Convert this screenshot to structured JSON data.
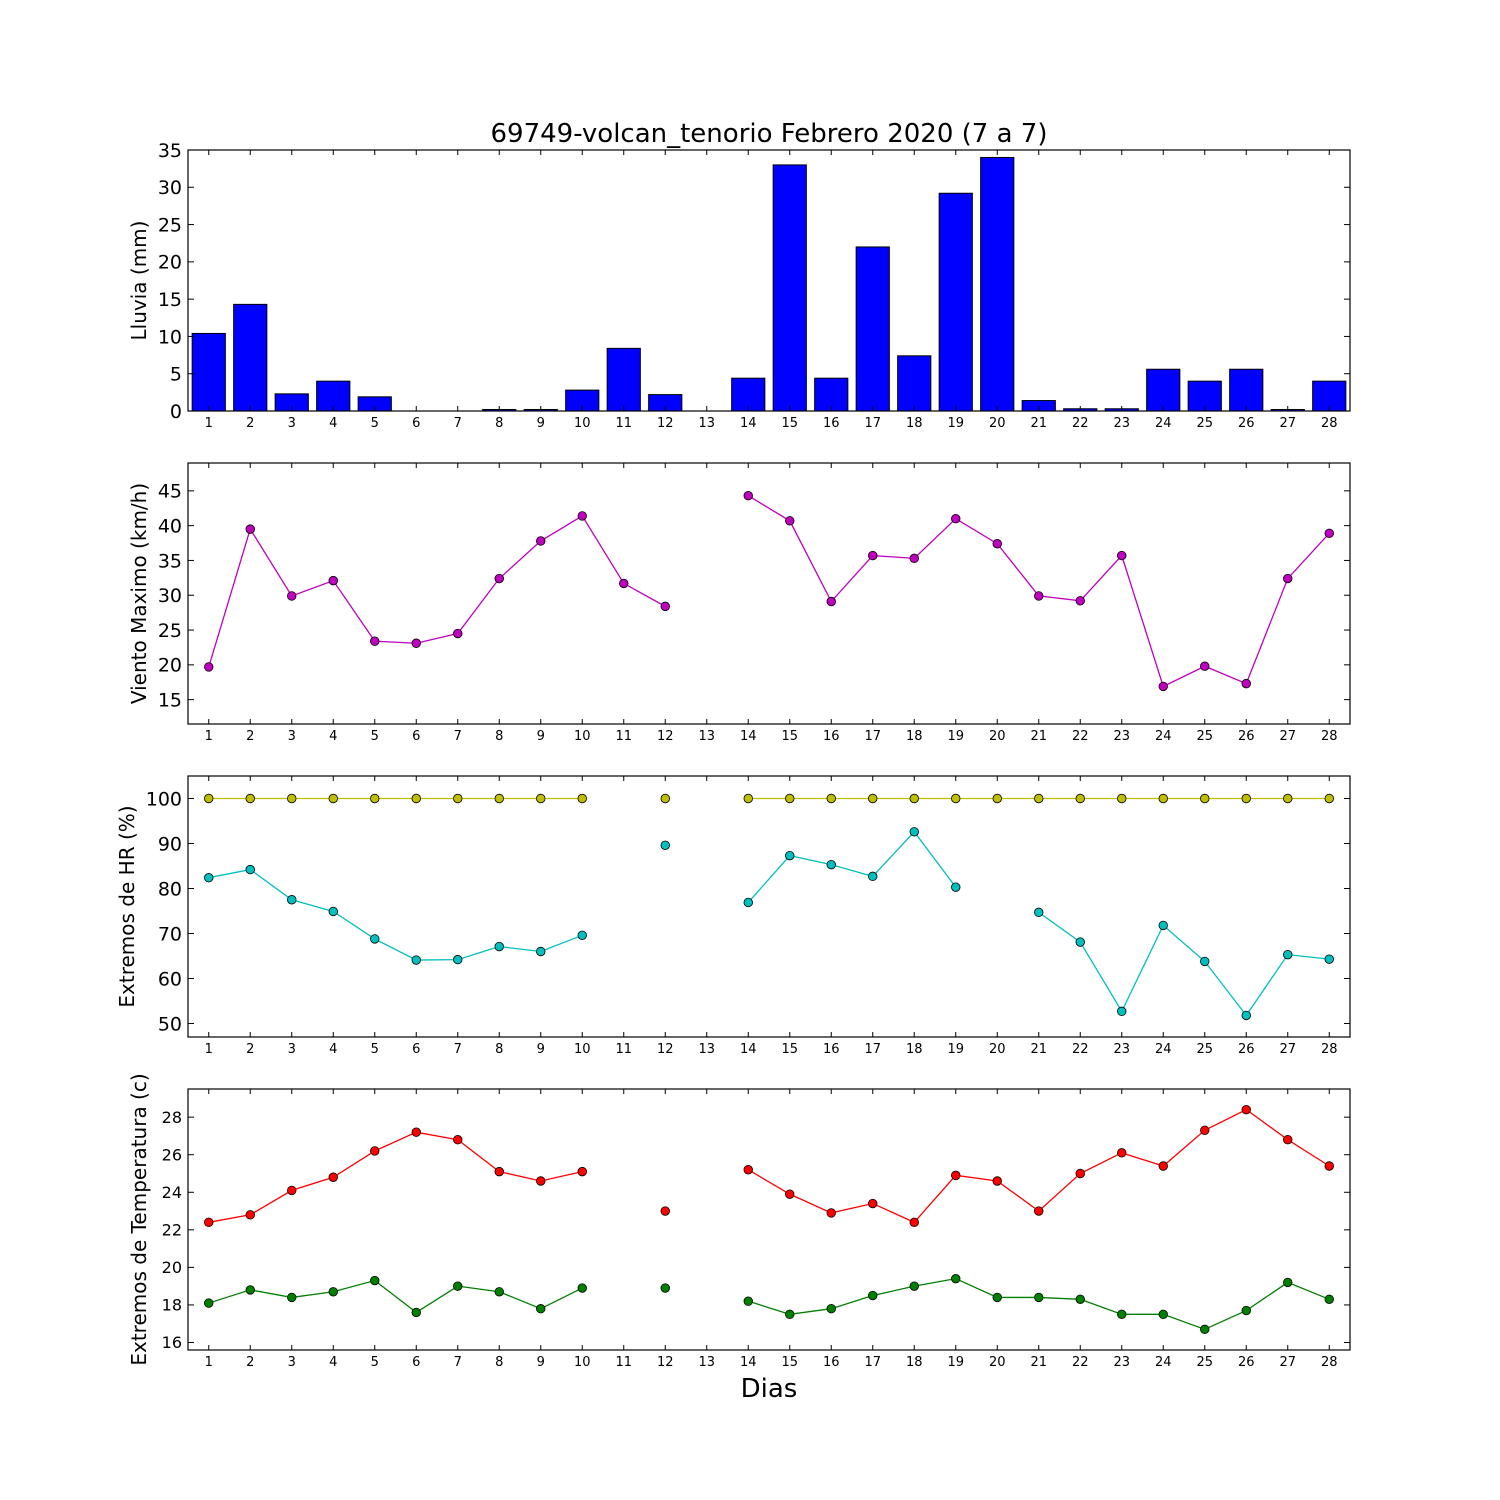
{
  "figure": {
    "title": "69749-volcan_tenorio Febrero 2020  (7 a 7)",
    "xlabel": "Dias"
  },
  "chart_data": [
    {
      "type": "bar",
      "ylabel": "Lluvia (mm)",
      "ylim": [
        0,
        35
      ],
      "yticks": [
        0,
        5,
        10,
        15,
        20,
        25,
        30,
        35
      ],
      "x": [
        1,
        2,
        3,
        4,
        5,
        6,
        7,
        8,
        9,
        10,
        11,
        12,
        13,
        14,
        15,
        16,
        17,
        18,
        19,
        20,
        21,
        22,
        23,
        24,
        25,
        26,
        27,
        28
      ],
      "xticks": [
        1,
        2,
        3,
        4,
        5,
        6,
        7,
        8,
        9,
        10,
        11,
        12,
        13,
        14,
        15,
        16,
        17,
        18,
        19,
        20,
        21,
        22,
        23,
        24,
        25,
        26,
        27,
        28
      ],
      "series": [
        {
          "color": "#0000ff",
          "values": [
            10.4,
            14.3,
            2.3,
            4.0,
            1.9,
            0,
            0,
            0.2,
            0.2,
            2.8,
            8.4,
            2.2,
            null,
            4.4,
            33.0,
            4.4,
            22.0,
            7.4,
            29.2,
            34.0,
            1.4,
            0.3,
            0.3,
            5.6,
            4.0,
            5.6,
            0.2,
            4.0
          ]
        }
      ]
    },
    {
      "type": "line",
      "ylabel": "Viento Maximo (km/h)",
      "ylim": [
        11.5,
        49
      ],
      "yticks": [
        15,
        20,
        25,
        30,
        35,
        40,
        45
      ],
      "x": [
        1,
        2,
        3,
        4,
        5,
        6,
        7,
        8,
        9,
        10,
        11,
        12,
        13,
        14,
        15,
        16,
        17,
        18,
        19,
        20,
        21,
        22,
        23,
        24,
        25,
        26,
        27,
        28
      ],
      "xticks": [
        1,
        2,
        3,
        4,
        5,
        6,
        7,
        8,
        9,
        10,
        11,
        12,
        13,
        14,
        15,
        16,
        17,
        18,
        19,
        20,
        21,
        22,
        23,
        24,
        25,
        26,
        27,
        28
      ],
      "series": [
        {
          "color": "#bf00bf",
          "values": [
            19.7,
            39.5,
            29.9,
            32.1,
            23.4,
            23.1,
            24.5,
            32.4,
            37.8,
            41.4,
            31.7,
            28.4,
            null,
            44.3,
            40.7,
            29.1,
            35.7,
            35.3,
            41.0,
            37.4,
            29.9,
            29.2,
            35.7,
            16.9,
            19.8,
            17.3,
            32.4,
            38.9
          ]
        }
      ]
    },
    {
      "type": "line",
      "ylabel": "Extremos de HR (%)",
      "ylim": [
        47,
        105
      ],
      "yticks": [
        50,
        60,
        70,
        80,
        90,
        100
      ],
      "x": [
        1,
        2,
        3,
        4,
        5,
        6,
        7,
        8,
        9,
        10,
        11,
        12,
        13,
        14,
        15,
        16,
        17,
        18,
        19,
        20,
        21,
        22,
        23,
        24,
        25,
        26,
        27,
        28
      ],
      "xticks": [
        1,
        2,
        3,
        4,
        5,
        6,
        7,
        8,
        9,
        10,
        11,
        12,
        13,
        14,
        15,
        16,
        17,
        18,
        19,
        20,
        21,
        22,
        23,
        24,
        25,
        26,
        27,
        28
      ],
      "series": [
        {
          "color": "#bfbf00",
          "values": [
            100,
            100,
            100,
            100,
            100,
            100,
            100,
            100,
            100,
            100,
            null,
            100,
            null,
            100,
            100,
            100,
            100,
            100,
            100,
            100,
            100,
            100,
            100,
            100,
            100,
            100,
            100,
            100
          ]
        },
        {
          "color": "#00bfbf",
          "values": [
            82.4,
            84.2,
            77.5,
            74.9,
            68.8,
            64.1,
            64.2,
            67.1,
            66.0,
            69.6,
            null,
            89.6,
            null,
            76.9,
            87.3,
            85.3,
            82.7,
            92.6,
            80.3,
            null,
            74.7,
            68.1,
            52.7,
            71.8,
            63.8,
            51.8,
            65.3,
            64.3
          ]
        }
      ]
    },
    {
      "type": "line",
      "ylabel": "Extremos de Temperatura (c)",
      "ylim": [
        15.6,
        29.5
      ],
      "yticks": [
        16,
        18,
        20,
        22,
        24,
        26,
        28
      ],
      "x": [
        1,
        2,
        3,
        4,
        5,
        6,
        7,
        8,
        9,
        10,
        11,
        12,
        13,
        14,
        15,
        16,
        17,
        18,
        19,
        20,
        21,
        22,
        23,
        24,
        25,
        26,
        27,
        28
      ],
      "xticks": [
        1,
        2,
        3,
        4,
        5,
        6,
        7,
        8,
        9,
        10,
        11,
        12,
        13,
        14,
        15,
        16,
        17,
        18,
        19,
        20,
        21,
        22,
        23,
        24,
        25,
        26,
        27,
        28
      ],
      "series": [
        {
          "color": "#ff0000",
          "values": [
            22.4,
            22.8,
            24.1,
            24.8,
            26.2,
            27.2,
            26.8,
            25.1,
            24.6,
            25.1,
            null,
            23.0,
            null,
            25.2,
            23.9,
            22.9,
            23.4,
            22.4,
            24.9,
            24.6,
            23.0,
            25.0,
            26.1,
            25.4,
            27.3,
            28.4,
            26.8,
            25.4
          ]
        },
        {
          "color": "#008000",
          "values": [
            18.1,
            18.8,
            18.4,
            18.7,
            19.3,
            17.6,
            19.0,
            18.7,
            17.8,
            18.9,
            null,
            18.9,
            null,
            18.2,
            17.5,
            17.8,
            18.5,
            19.0,
            19.4,
            18.4,
            18.4,
            18.3,
            17.5,
            17.5,
            16.7,
            17.7,
            19.2,
            18.3
          ]
        }
      ]
    }
  ]
}
